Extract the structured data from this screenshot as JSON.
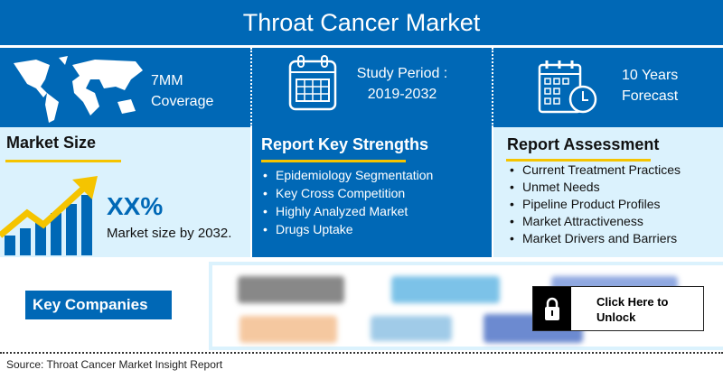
{
  "title": "Throat Cancer Market",
  "highlights": {
    "coverage": [
      "7MM",
      "Coverage"
    ],
    "study": [
      "Study Period :",
      "2019-2032"
    ],
    "forecast": [
      "10 Years",
      "Forecast"
    ]
  },
  "market_size": {
    "title": "Market Size",
    "value": "XX%",
    "caption": "Market size by 2032."
  },
  "strengths": {
    "title": "Report Key Strengths",
    "items": [
      "Epidemiology Segmentation",
      "Key Cross Competition",
      "Highly Analyzed Market",
      "Drugs Uptake"
    ]
  },
  "assessment": {
    "title": "Report Assessment",
    "items": [
      "Current Treatment Practices",
      "Unmet Needs",
      "Pipeline Product Profiles",
      "Market Attractiveness",
      "Market Drivers and Barriers"
    ]
  },
  "companies": {
    "label": "Key Companies",
    "unlock": "Click Here to Unlock"
  },
  "source": "Source: Throat Cancer Market Insight Report",
  "colors": {
    "primary": "#0068b6",
    "light": "#dbf2fd",
    "accent": "#f5c400"
  }
}
